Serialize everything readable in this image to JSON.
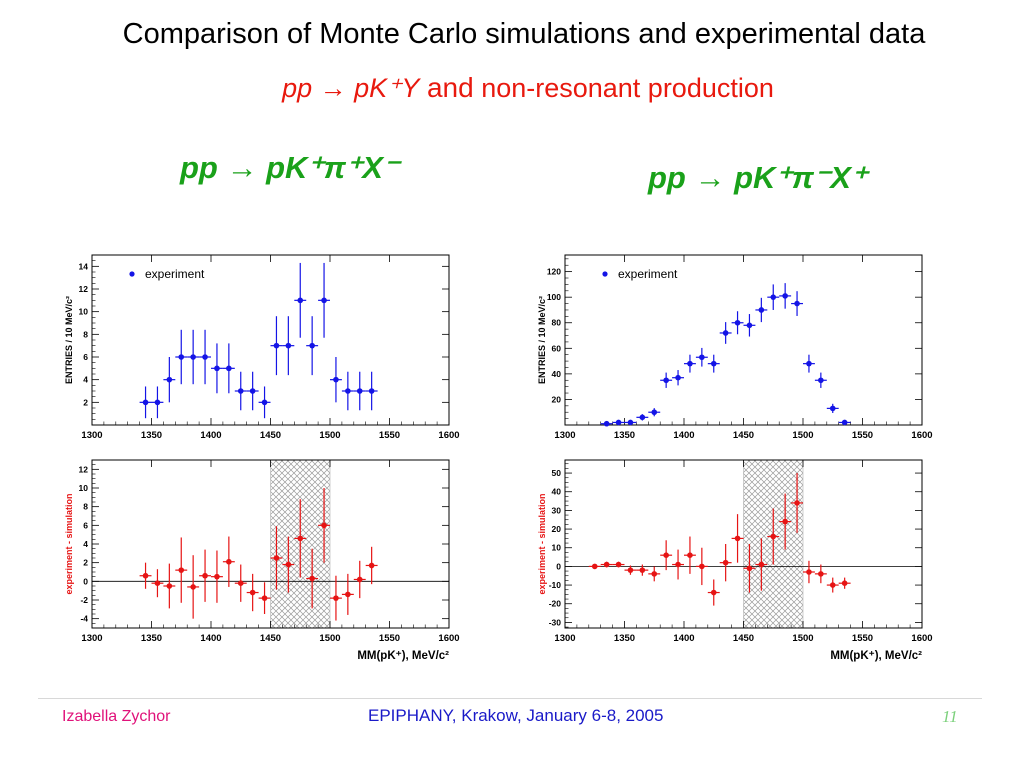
{
  "header": {
    "title": "Comparison of Monte Carlo simulations and experimental data",
    "subtitle_reaction": "pp → pK⁺Y",
    "subtitle_and": "and",
    "subtitle_rest": "non-resonant production"
  },
  "reactions": {
    "left": "pp → pK⁺π⁺X⁻",
    "right": "pp → pK⁺π⁻X⁺"
  },
  "footer": {
    "author": "Izabella Zychor",
    "event": "EPIPHANY, Krakow, January 6-8, 2005",
    "page": "11"
  },
  "colors": {
    "experiment": "#1414e6",
    "difference": "#e61414",
    "reaction_label": "#1aa11a",
    "ylabel_diff": "#e61414"
  },
  "chart_data": [
    {
      "id": "left-top",
      "type": "scatter",
      "xlim": [
        1300,
        1600
      ],
      "ylim": [
        0,
        15
      ],
      "xticks": [
        1300,
        1350,
        1400,
        1450,
        1500,
        1550,
        1600
      ],
      "yticks": [
        2,
        4,
        6,
        8,
        10,
        12,
        14
      ],
      "ylabel": "ENTRIES / 10 MeV/c²",
      "xlabel": "",
      "legend": "experiment",
      "legend_position": "top-left",
      "grid": false,
      "series": [
        {
          "name": "experiment",
          "x": [
            1345,
            1355,
            1365,
            1375,
            1385,
            1395,
            1405,
            1415,
            1425,
            1435,
            1445,
            1455,
            1465,
            1475,
            1485,
            1495,
            1505,
            1515,
            1525,
            1535
          ],
          "y": [
            2,
            2,
            4,
            6,
            6,
            6,
            5,
            5,
            3,
            3,
            2,
            7,
            7,
            11,
            7,
            11,
            4,
            3,
            3,
            3
          ],
          "err": [
            1.4,
            1.4,
            2.0,
            2.4,
            2.4,
            2.4,
            2.2,
            2.2,
            1.7,
            1.7,
            1.4,
            2.6,
            2.6,
            3.3,
            2.6,
            3.3,
            2.0,
            1.7,
            1.7,
            1.7
          ]
        }
      ]
    },
    {
      "id": "right-top",
      "type": "scatter",
      "xlim": [
        1300,
        1600
      ],
      "ylim": [
        0,
        133
      ],
      "xticks": [
        1300,
        1350,
        1400,
        1450,
        1500,
        1550,
        1600
      ],
      "yticks": [
        20,
        40,
        60,
        80,
        100,
        120
      ],
      "ylabel": "ENTRIES / 10 MeV/c²",
      "xlabel": "",
      "legend": "experiment",
      "legend_position": "top-left",
      "grid": false,
      "series": [
        {
          "name": "experiment",
          "x": [
            1335,
            1345,
            1355,
            1365,
            1375,
            1385,
            1395,
            1405,
            1415,
            1425,
            1435,
            1445,
            1455,
            1465,
            1475,
            1485,
            1495,
            1505,
            1515,
            1525,
            1535
          ],
          "y": [
            1,
            2,
            2,
            6,
            10,
            35,
            37,
            48,
            53,
            48,
            72,
            80,
            78,
            90,
            100,
            101,
            95,
            48,
            35,
            13,
            2
          ],
          "err": [
            1,
            1.4,
            1.4,
            2.5,
            3.2,
            6,
            6,
            7,
            7.3,
            7,
            8.5,
            9,
            8.8,
            9.5,
            10,
            10,
            9.7,
            7,
            6,
            3.6,
            1.4
          ]
        }
      ]
    },
    {
      "id": "left-bottom",
      "type": "scatter",
      "xlim": [
        1300,
        1600
      ],
      "ylim": [
        -5,
        13
      ],
      "xticks": [
        1300,
        1350,
        1400,
        1450,
        1500,
        1550,
        1600
      ],
      "yticks": [
        -4,
        -2,
        0,
        2,
        4,
        6,
        8,
        10,
        12
      ],
      "ylabel": "experiment - simulation",
      "xlabel": "MM(pK⁺), MeV/c²",
      "shaded_region": [
        1450,
        1500
      ],
      "zero_line": true,
      "grid": false,
      "series": [
        {
          "name": "experiment - simulation",
          "x": [
            1345,
            1355,
            1365,
            1375,
            1385,
            1395,
            1405,
            1415,
            1425,
            1435,
            1445,
            1455,
            1465,
            1475,
            1485,
            1495,
            1505,
            1515,
            1525,
            1535
          ],
          "y": [
            0.6,
            -0.2,
            -0.5,
            1.2,
            -0.6,
            0.6,
            0.5,
            2.1,
            -0.2,
            -1.2,
            -1.8,
            2.5,
            1.8,
            4.6,
            0.3,
            6.0,
            -1.8,
            -1.4,
            0.2,
            1.7
          ],
          "err": [
            1.4,
            1.5,
            2.4,
            3.5,
            3.4,
            2.8,
            2.8,
            2.7,
            2.0,
            2.0,
            1.7,
            3.4,
            3.0,
            4.2,
            3.2,
            4.0,
            2.4,
            2.2,
            2.0,
            2.0
          ]
        }
      ]
    },
    {
      "id": "right-bottom",
      "type": "scatter",
      "xlim": [
        1300,
        1600
      ],
      "ylim": [
        -33,
        57
      ],
      "xticks": [
        1300,
        1350,
        1400,
        1450,
        1500,
        1550,
        1600
      ],
      "yticks": [
        -30,
        -20,
        -10,
        0,
        10,
        20,
        30,
        40,
        50
      ],
      "ylabel": "experiment - simulation",
      "xlabel": "MM(pK⁺), MeV/c²",
      "shaded_region": [
        1450,
        1500
      ],
      "zero_line": true,
      "grid": false,
      "series": [
        {
          "name": "experiment - simulation",
          "x": [
            1325,
            1335,
            1345,
            1355,
            1365,
            1375,
            1385,
            1395,
            1405,
            1415,
            1425,
            1435,
            1445,
            1455,
            1465,
            1475,
            1485,
            1495,
            1505,
            1515,
            1525,
            1535
          ],
          "y": [
            0,
            1,
            1,
            -2,
            -2,
            -4,
            6,
            1,
            6,
            0,
            -14,
            2,
            15,
            -1,
            1,
            16,
            24,
            34,
            -3,
            -4,
            -10,
            -9
          ],
          "err": [
            1,
            1.5,
            1.5,
            2.5,
            3,
            4,
            8,
            8,
            10,
            10,
            7,
            10,
            13,
            13,
            14,
            15,
            15,
            16,
            6,
            5,
            4,
            3
          ]
        }
      ]
    }
  ]
}
